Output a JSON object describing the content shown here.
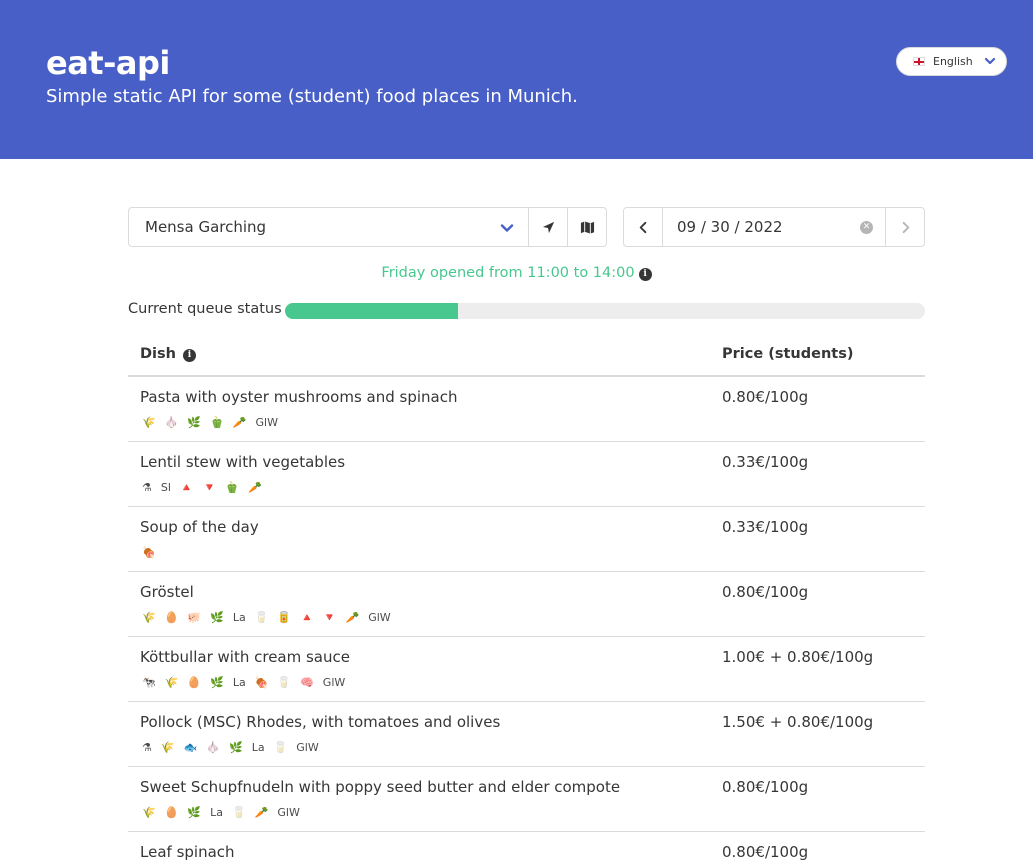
{
  "hero": {
    "title": "eat-api",
    "subtitle": "Simple static API for some (student) food places in Munich."
  },
  "language": {
    "selected": "English",
    "flag": "english-flag-icon"
  },
  "location": {
    "selected": "Mensa Garching",
    "locate_icon": "location-arrow-icon",
    "map_icon": "map-icon"
  },
  "date": {
    "value": "09 / 30 / 2022",
    "prev_icon": "chevron-left-icon",
    "next_icon": "chevron-right-icon",
    "clear_icon": "clear-icon"
  },
  "opening": {
    "text": "Friday opened from 11:00 to 14:00"
  },
  "queue": {
    "label": "Current queue status",
    "fill_percent": 27
  },
  "table": {
    "header_dish": "Dish",
    "header_price": "Price (students)",
    "rows": [
      {
        "name": "Pasta with oyster mushrooms and spinach",
        "price": "0.80€/100g",
        "labels": [
          "🌾",
          "🧄",
          "🌿",
          "🫑",
          "🥕",
          "GlW"
        ]
      },
      {
        "name": "Lentil stew with vegetables",
        "price": "0.33€/100g",
        "labels": [
          "⚗",
          "Sl",
          "🔺",
          "🔻",
          "🫑",
          "🥕"
        ]
      },
      {
        "name": "Soup of the day",
        "price": "0.33€/100g",
        "labels": [
          "🍖"
        ]
      },
      {
        "name": "Gröstel",
        "price": "0.80€/100g",
        "labels": [
          "🌾",
          "🥚",
          "🐖",
          "🌿",
          "La",
          "🥛",
          "🥫",
          "🔺",
          "🔻",
          "🥕",
          "GlW"
        ]
      },
      {
        "name": "Köttbullar with cream sauce",
        "price": "1.00€ + 0.80€/100g",
        "labels": [
          "🐄",
          "🌾",
          "🥚",
          "🌿",
          "La",
          "🍖",
          "🥛",
          "🧠",
          "GlW"
        ]
      },
      {
        "name": "Pollock (MSC) Rhodes, with tomatoes and olives",
        "price": "1.50€ + 0.80€/100g",
        "labels": [
          "⚗",
          "🌾",
          "🐟",
          "🧄",
          "🌿",
          "La",
          "🥛",
          "GlW"
        ]
      },
      {
        "name": "Sweet Schupfnudeln with poppy seed butter and elder compote",
        "price": "0.80€/100g",
        "labels": [
          "🌾",
          "🥚",
          "🌿",
          "La",
          "🥛",
          "🥕",
          "GlW"
        ]
      },
      {
        "name": "Leaf spinach",
        "price": "0.80€/100g",
        "labels": []
      }
    ]
  }
}
